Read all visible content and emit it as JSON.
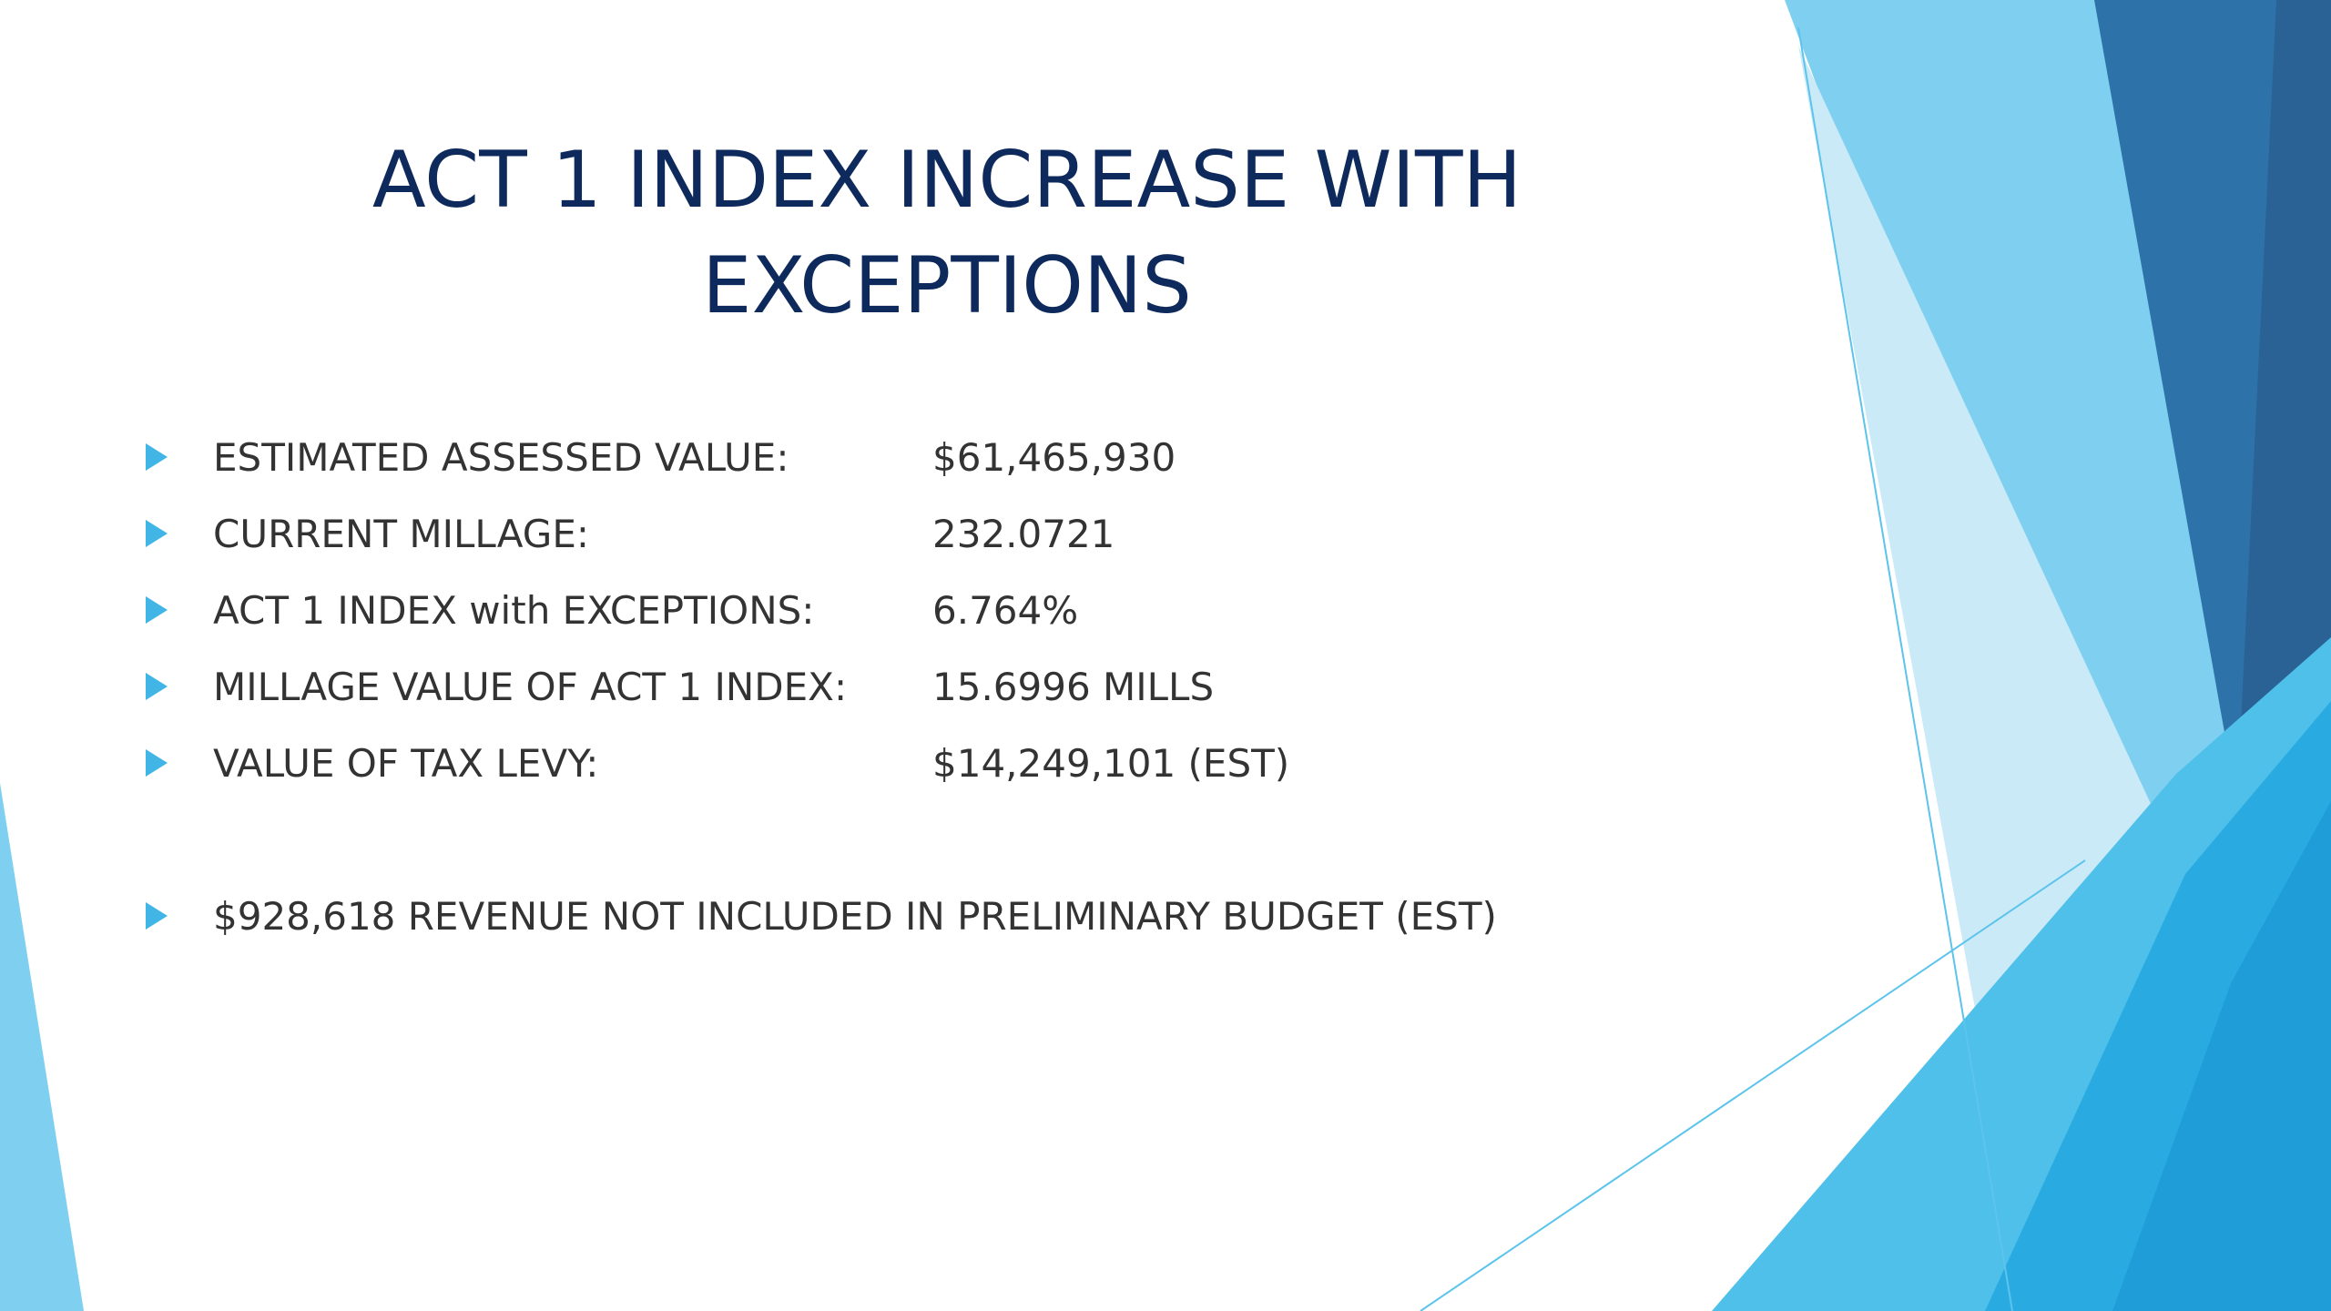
{
  "slide": {
    "title_lines": [
      "ACT 1 INDEX INCREASE WITH",
      "EXCEPTIONS"
    ],
    "rows": [
      {
        "label": "ESTIMATED ASSESSED VALUE:",
        "value": "$61,465,930"
      },
      {
        "label": "CURRENT MILLAGE:",
        "value": "232.0721"
      },
      {
        "label": "ACT 1 INDEX with EXCEPTIONS:",
        "value": "6.764%"
      },
      {
        "label": "MILLAGE VALUE OF ACT 1 INDEX:",
        "value": "15.6996 MILLS"
      },
      {
        "label": "VALUE OF TAX LEVY:",
        "value": "$14,249,101 (EST)"
      }
    ],
    "note": "$928,618 REVENUE NOT INCLUDED IN PRELIMINARY BUDGET (EST)"
  },
  "theme": {
    "title_color": "#0e2a5c",
    "text_color": "#333333",
    "bullet_color": "#41b6e6",
    "accent_light": "#7fd0f0",
    "accent_mid": "#29abe2",
    "accent_dark": "#2a6fa8"
  },
  "icons": {
    "bullet": "triangle-right-icon"
  }
}
